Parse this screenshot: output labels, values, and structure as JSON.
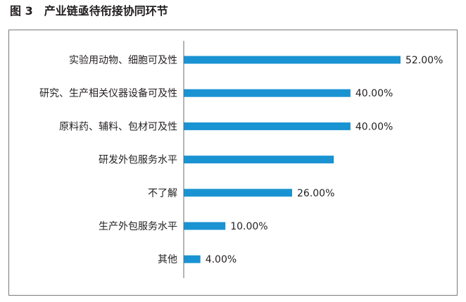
{
  "figure": {
    "label": "图 3",
    "title": "产业链亟待衔接协同环节"
  },
  "chart_data": {
    "type": "bar",
    "orientation": "horizontal",
    "title": "产业链亟待衔接协同环节",
    "categories": [
      "实验用动物、细胞可及性",
      "研究、生产相关仪器设备可及性",
      "原料药、辅料、包材可及性",
      "研发外包服务水平",
      "不了解",
      "生产外包服务水平",
      "其他"
    ],
    "values": [
      52,
      40,
      40,
      36,
      26,
      10,
      4
    ],
    "data_labels": [
      "52.00%",
      "40.00%",
      "40.00%",
      "",
      "26.00%",
      "10.00%",
      "4.00%"
    ],
    "unit": "%",
    "bar_color": "#1a93d3",
    "xlim": [
      0,
      52
    ],
    "grid": false,
    "legend": "none"
  }
}
